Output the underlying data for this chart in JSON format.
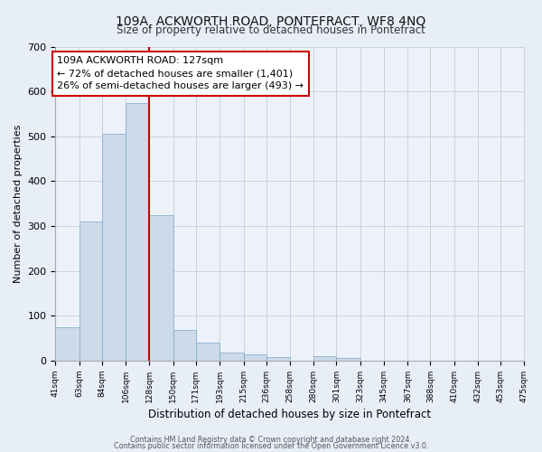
{
  "title": "109A, ACKWORTH ROAD, PONTEFRACT, WF8 4NQ",
  "subtitle": "Size of property relative to detached houses in Pontefract",
  "xlabel": "Distribution of detached houses by size in Pontefract",
  "ylabel": "Number of detached properties",
  "bin_labels": [
    "41sqm",
    "63sqm",
    "84sqm",
    "106sqm",
    "128sqm",
    "150sqm",
    "171sqm",
    "193sqm",
    "215sqm",
    "236sqm",
    "258sqm",
    "280sqm",
    "301sqm",
    "323sqm",
    "345sqm",
    "367sqm",
    "388sqm",
    "410sqm",
    "432sqm",
    "453sqm",
    "475sqm"
  ],
  "bin_edges": [
    41,
    63,
    84,
    106,
    128,
    150,
    171,
    193,
    215,
    236,
    258,
    280,
    301,
    323,
    345,
    367,
    388,
    410,
    432,
    453,
    475
  ],
  "bar_heights": [
    75,
    310,
    505,
    575,
    325,
    68,
    40,
    18,
    15,
    8,
    0,
    10,
    5,
    0,
    0,
    0,
    0,
    0,
    0,
    0
  ],
  "bar_color": "#ccdaea",
  "bar_edge_color": "#8ab0cc",
  "property_line_x": 128,
  "annotation_text_line1": "109A ACKWORTH ROAD: 127sqm",
  "annotation_text_line2": "← 72% of detached houses are smaller (1,401)",
  "annotation_text_line3": "26% of semi-detached houses are larger (493) →",
  "annotation_box_facecolor": "#ffffff",
  "annotation_box_edgecolor": "#cc0000",
  "property_line_color": "#cc0000",
  "ylim": [
    0,
    700
  ],
  "yticks": [
    0,
    100,
    200,
    300,
    400,
    500,
    600,
    700
  ],
  "footer_line1": "Contains HM Land Registry data © Crown copyright and database right 2024.",
  "footer_line2": "Contains public sector information licensed under the Open Government Licence v3.0.",
  "bg_color": "#e8eef8",
  "plot_bg_color": "#edf2fa"
}
